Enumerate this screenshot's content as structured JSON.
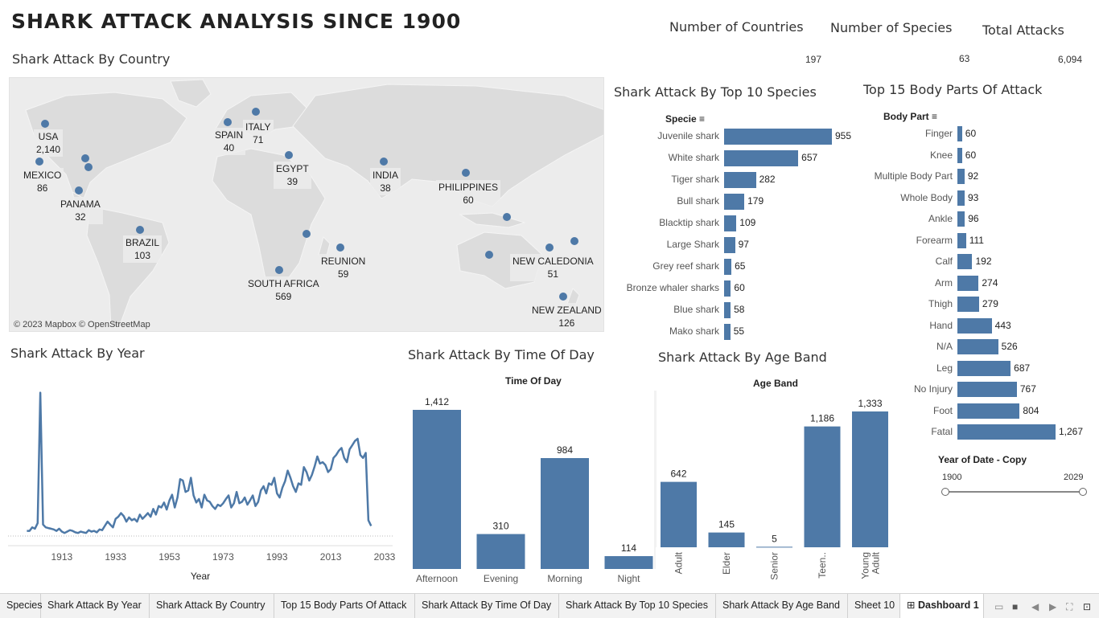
{
  "title": "SHARK  ATTACK  ANALYSIS  SINCE 1900",
  "kpis": [
    {
      "label": "Number of Countries",
      "value": "197"
    },
    {
      "label": "Number of Species",
      "value": "63"
    },
    {
      "label": "Total Attacks",
      "value": "6,094"
    }
  ],
  "map": {
    "title": "Shark Attack By Country",
    "attribution": "© 2023 Mapbox © OpenStreetMap",
    "labels": [
      {
        "name": "USA",
        "value": "2,140"
      },
      {
        "name": "MEXICO",
        "value": "86"
      },
      {
        "name": "PANAMA",
        "value": "32"
      },
      {
        "name": "BRAZIL",
        "value": "103"
      },
      {
        "name": "SPAIN",
        "value": "40"
      },
      {
        "name": "ITALY",
        "value": "71"
      },
      {
        "name": "EGYPT",
        "value": "39"
      },
      {
        "name": "INDIA",
        "value": "38"
      },
      {
        "name": "PHILIPPINES",
        "value": "60"
      },
      {
        "name": "SOUTH AFRICA",
        "value": "569"
      },
      {
        "name": "REUNION",
        "value": "59"
      },
      {
        "name": "NEW CALEDONIA",
        "value": "51"
      },
      {
        "name": "NEW ZEALAND",
        "value": "126"
      }
    ]
  },
  "species": {
    "title": "Shark Attack By Top 10 Species",
    "header": "Specie",
    "chart_data": {
      "type": "bar",
      "categories": [
        "Juvenile shark",
        "White shark",
        "Tiger shark",
        "Bull shark",
        "Blacktip shark",
        "Large Shark",
        "Grey reef shark",
        "Bronze whaler sharks",
        "Blue shark",
        "Mako shark"
      ],
      "values": [
        955,
        657,
        282,
        179,
        109,
        97,
        65,
        60,
        58,
        55
      ],
      "labels": [
        "955",
        "657",
        "282",
        "179",
        "109",
        "97",
        "65",
        "60",
        "58",
        "55"
      ]
    }
  },
  "body": {
    "title": "Top 15 Body Parts Of Attack",
    "header": "Body Part",
    "chart_data": {
      "type": "bar",
      "categories": [
        "Finger",
        "Knee",
        "Multiple Body Part",
        "Whole Body",
        "Ankle",
        "Forearm",
        "Calf",
        "Arm",
        "Thigh",
        "Hand",
        "N/A",
        "Leg",
        "No Injury",
        "Foot",
        "Fatal"
      ],
      "values": [
        60,
        60,
        92,
        93,
        96,
        111,
        192,
        274,
        279,
        443,
        526,
        687,
        767,
        804,
        1267
      ],
      "labels": [
        "60",
        "60",
        "92",
        "93",
        "96",
        "111",
        "192",
        "274",
        "279",
        "443",
        "526",
        "687",
        "767",
        "804",
        "1,267"
      ]
    }
  },
  "year": {
    "title": "Shark Attack By Year",
    "chart_data": {
      "type": "line",
      "xlabel": "Year",
      "xticks": [
        "1913",
        "1933",
        "1953",
        "1973",
        "1993",
        "2013",
        "2033"
      ],
      "x": [
        1900,
        1901,
        1902,
        1903,
        1904,
        1905,
        1906,
        1907,
        1908,
        1909,
        1910,
        1911,
        1912,
        1913,
        1914,
        1915,
        1916,
        1917,
        1918,
        1919,
        1920,
        1921,
        1922,
        1923,
        1924,
        1925,
        1926,
        1927,
        1928,
        1929,
        1930,
        1931,
        1932,
        1933,
        1934,
        1935,
        1936,
        1937,
        1938,
        1939,
        1940,
        1941,
        1942,
        1943,
        1944,
        1945,
        1946,
        1947,
        1948,
        1949,
        1950,
        1951,
        1952,
        1953,
        1954,
        1955,
        1956,
        1957,
        1958,
        1959,
        1960,
        1961,
        1962,
        1963,
        1964,
        1965,
        1966,
        1967,
        1968,
        1969,
        1970,
        1971,
        1972,
        1973,
        1974,
        1975,
        1976,
        1977,
        1978,
        1979,
        1980,
        1981,
        1982,
        1983,
        1984,
        1985,
        1986,
        1987,
        1988,
        1989,
        1990,
        1991,
        1992,
        1993,
        1994,
        1995,
        1996,
        1997,
        1998,
        1999,
        2000,
        2001,
        2002,
        2003,
        2004,
        2005,
        2006,
        2007,
        2008,
        2009,
        2010,
        2011,
        2012,
        2013,
        2014,
        2015,
        2016,
        2017,
        2018,
        2019,
        2020,
        2021,
        2022,
        2023,
        2024,
        2025,
        2026,
        2027,
        2028
      ],
      "values": [
        5,
        5,
        10,
        8,
        16,
        200,
        14,
        10,
        9,
        8,
        7,
        5,
        8,
        4,
        2,
        4,
        6,
        5,
        3,
        2,
        4,
        3,
        2,
        6,
        4,
        5,
        3,
        7,
        6,
        12,
        18,
        14,
        10,
        22,
        25,
        30,
        26,
        18,
        24,
        20,
        22,
        18,
        28,
        22,
        26,
        30,
        25,
        36,
        28,
        40,
        38,
        45,
        35,
        48,
        56,
        38,
        52,
        78,
        76,
        60,
        62,
        80,
        55,
        45,
        50,
        38,
        56,
        48,
        46,
        40,
        36,
        42,
        40,
        44,
        50,
        55,
        38,
        44,
        60,
        44,
        46,
        52,
        42,
        48,
        55,
        40,
        46,
        62,
        68,
        58,
        72,
        70,
        80,
        58,
        52,
        66,
        75,
        90,
        80,
        68,
        60,
        72,
        70,
        95,
        88,
        76,
        84,
        96,
        110,
        100,
        102,
        98,
        88,
        92,
        108,
        112,
        118,
        122,
        108,
        102,
        120,
        126,
        132,
        135,
        112,
        108,
        115,
        20,
        12
      ],
      "ylim": [
        0,
        220
      ]
    }
  },
  "tod": {
    "title": "Shark Attack By Time Of Day",
    "header": "Time Of Day",
    "chart_data": {
      "type": "bar",
      "categories": [
        "Afternoon",
        "Evening",
        "Morning",
        "Night"
      ],
      "values": [
        1412,
        310,
        984,
        114
      ],
      "labels": [
        "1,412",
        "310",
        "984",
        "114"
      ]
    }
  },
  "age": {
    "title": "Shark Attack By Age Band",
    "header": "Age Band",
    "chart_data": {
      "type": "bar",
      "categories": [
        "Adult",
        "Elder",
        "Senior",
        "Teen..",
        "Young Adult"
      ],
      "values": [
        642,
        145,
        5,
        1186,
        1333
      ],
      "labels": [
        "642",
        "145",
        "5",
        "1,186",
        "1,333"
      ]
    }
  },
  "filter": {
    "title": "Year of Date - Copy",
    "min": "1900",
    "max": "2029"
  },
  "tabs": [
    "Species",
    "Shark Attack By Year",
    "Shark Attack By Country",
    "Top 15 Body Parts Of Attack",
    "Shark Attack By Time Of Day",
    "Shark Attack By Top 10 Species",
    "Shark Attack By Age Band",
    "Sheet 10",
    "Dashboard 1"
  ],
  "icons": {
    "dashboard": "grid-icon",
    "sort": "sort-icon"
  },
  "colors": {
    "bar": "#4e79a7",
    "line": "#4e79a7",
    "map_land": "#dcdcdc",
    "map_water": "#ececec"
  }
}
